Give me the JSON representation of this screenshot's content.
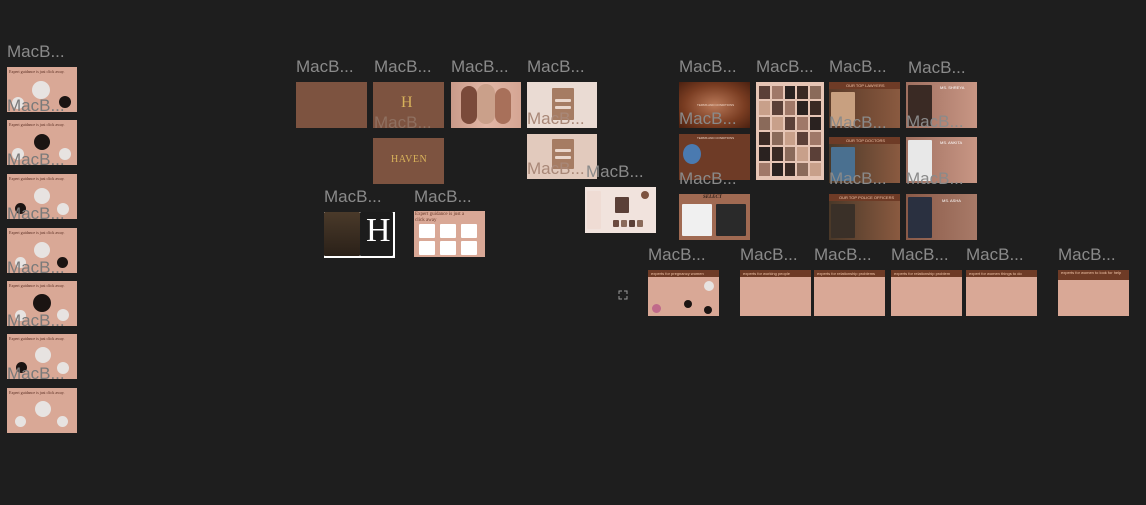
{
  "frame_label": "MacB...",
  "left_column": {
    "caption": "Expert guidance is just click away."
  },
  "center": {
    "haven_letter": "H",
    "haven_word": "HAVEN",
    "pink_caption": "Expert guidance is just a click away"
  },
  "right_top": {
    "terms_title": "TERMS AND CONDITIONS",
    "select_title": "SELECT",
    "top_lawyers": "OUR TOP LAWYERS",
    "top_doctors": "OUR TOP DOCTORS",
    "top_police": "OUR TOP POLICE OFFICERS",
    "ms_shreya": "MS. SHREYA",
    "ms_ankita": "MS. ANKITA",
    "ms_asha": "MS. ASHA"
  },
  "bottom_row": {
    "b1": "experts for pregnancy women",
    "b2": "experts for working people",
    "b3": "experts for relationship problems",
    "b4": "experts for relationship problem",
    "b5": "expert for women things to do",
    "b6": "experts for women to look for help"
  },
  "colors": {
    "canvas": "#1e1e1e",
    "label": "#8a8a8a",
    "tan": "#d9a896",
    "brown": "#7d5340"
  },
  "icons": {
    "fullscreen": "expand-icon"
  }
}
